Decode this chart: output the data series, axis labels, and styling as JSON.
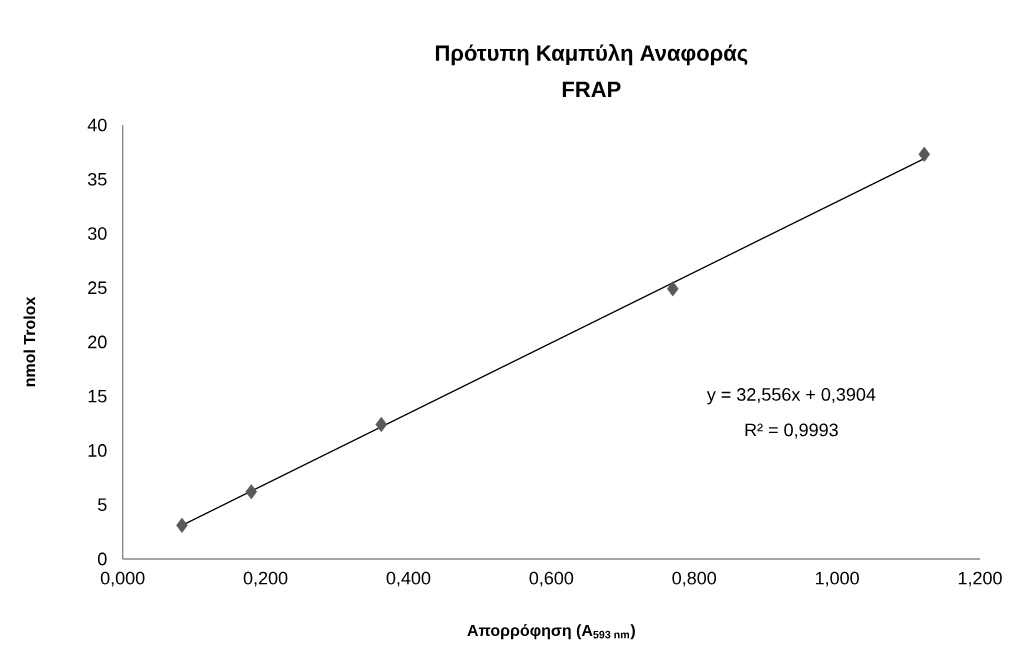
{
  "chart_data": {
    "type": "scatter",
    "title": "Πρότυπη Καμπύλη Αναφοράς",
    "subtitle": "FRAP",
    "xlabel": "Απορρόφηση (A$_{593 nm}$)",
    "ylabel": "nmol Trolox",
    "x": [
      0.083,
      0.18,
      0.362,
      0.77,
      1.122
    ],
    "series": [
      {
        "color": "#595959",
        "marker": "diamond",
        "values": [
          3.1,
          6.2,
          12.4,
          24.9,
          37.3
        ]
      },
      {
        "type": "line",
        "color": "#000000",
        "marker": "none",
        "x": [
          0.083,
          1.122
        ],
        "values": [
          3.1,
          36.9
        ]
      }
    ],
    "xlim": [
      0,
      1.2
    ],
    "xticks": [
      {
        "value": 0,
        "label": "0,000"
      },
      {
        "value": 0.2,
        "label": "0,200"
      },
      {
        "value": 0.4,
        "label": "0,400"
      },
      {
        "value": 0.6,
        "label": "0,600"
      },
      {
        "value": 0.8,
        "label": "0,800"
      },
      {
        "value": 1.0,
        "label": "1,000"
      },
      {
        "value": 1.2,
        "label": "1,200"
      }
    ],
    "ylim": [
      0,
      40
    ],
    "yticks": [
      0,
      5,
      10,
      15,
      20,
      25,
      30,
      35,
      40
    ],
    "annotations": [
      "y = 32,556x + 0,3904",
      "R² = 0,9993"
    ]
  }
}
